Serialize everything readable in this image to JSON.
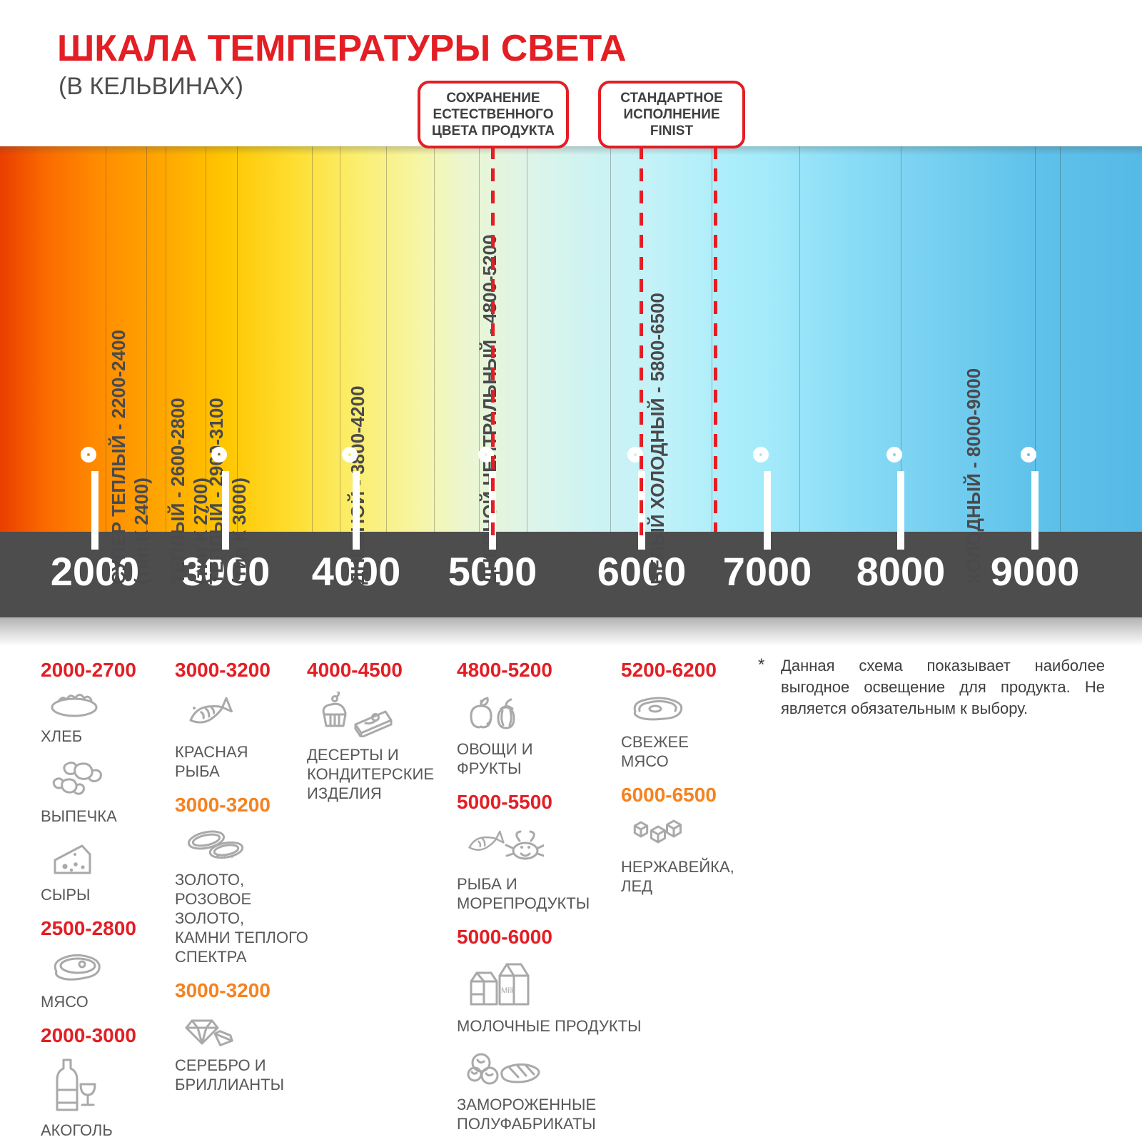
{
  "header": {
    "title": "ШКАЛА ТЕМПЕРАТУРЫ СВЕТА",
    "subtitle": "(В КЕЛЬВИНАХ)"
  },
  "callouts": [
    {
      "name": "preserve-natural-color",
      "lines": [
        "СОХРАНЕНИЕ",
        "ЕСТЕСТВЕННОГО",
        "ЦВЕТА ПРОДУКТА"
      ]
    },
    {
      "name": "standard-finist",
      "lines": [
        "СТАНДАРТНОЕ",
        "ИСПОЛНЕНИЕ",
        "FINIST"
      ]
    }
  ],
  "colors": {
    "red": "#e31e24",
    "orange": "#f58220",
    "bar": "#4d4d4d",
    "label_gray": "#58585a",
    "icon_gray": "#a9a9a9",
    "gradient": "linear-gradient(90deg,#e93e00 0%,#fb6a00 4%,#ff8a00 8.3%,#ffa600 14%,#ffc600 19.7%,#fedd2f 25.5%,#fbee6f 31.2%,#f7f5a3 36.5%,#ecf6cf 40.5%,#e6f5dc 43.1%,#dcf4ea 47%,#cdf3f3 52%,#c6f2f7 56.2%,#aeeefa 63%,#a3eafa 67.4%,#8edff7 73%,#7ed5f2 78.9%,#6ecbee 85%,#5fc2ea 90.6%,#55bae6 100%)"
  },
  "chart_data": {
    "type": "scale",
    "title": "ШКАЛА ТЕМПЕРАТУРЫ СВЕТА (В КЕЛЬВИНАХ)",
    "axis_unit": "K",
    "axis_ticks": [
      "2000",
      "3000",
      "4000",
      "5000",
      "6000",
      "7000",
      "8000",
      "9000"
    ],
    "zones": [
      {
        "name": "СУПЕР ТЕПЛЫЙ",
        "range": "2200-2400",
        "type_label": "(тип К 2400)"
      },
      {
        "name": "ТЕПЛЫЙ",
        "range": "2600-2800",
        "type_label": "(тип К 2700)"
      },
      {
        "name": "ТЕПЛЫЙ",
        "range": "2900-3100",
        "type_label": "(тип К 3000)"
      },
      {
        "name": "ДНЕВНОЙ",
        "range": "3800-4200"
      },
      {
        "name": "ДНЕВНОЙ НЕЙТРАЛЬНЫЙ",
        "range": "4800-5200"
      },
      {
        "name": "БЕЛЫЙ ХОЛОДНЫЙ",
        "range": "5800-6500"
      },
      {
        "name": "ХОЛОДНЫЙ",
        "range": "8000-9000"
      }
    ],
    "annotations": [
      {
        "label": "СОХРАНЕНИЕ ЕСТЕСТВЕННОГО ЦВЕТА ПРОДУКТА",
        "at": 5000
      },
      {
        "label": "СТАНДАРТНОЕ ИСПОЛНЕНИЕ FINIST",
        "from": 6000,
        "to": 6500
      }
    ]
  },
  "icons": {
    "milk_carton_text": "Milk"
  },
  "legend_columns": [
    {
      "groups": [
        {
          "range": "2000-2700",
          "color": "red",
          "items": [
            {
              "icon": "bread-icon",
              "label": "ХЛЕБ"
            },
            {
              "icon": "croissant-icon",
              "label": "ВЫПЕЧКА"
            },
            {
              "icon": "cheese-icon",
              "label": "СЫРЫ"
            }
          ]
        },
        {
          "range": "2500-2800",
          "color": "red",
          "items": [
            {
              "icon": "meat-icon",
              "label": "МЯСО"
            }
          ]
        },
        {
          "range": "2000-3000",
          "color": "red",
          "items": [
            {
              "icon": "alcohol-icon",
              "label": "АКОГОЛЬ"
            }
          ]
        }
      ]
    },
    {
      "groups": [
        {
          "range": "3000-3200",
          "color": "red",
          "items": [
            {
              "icon": "fish-icon",
              "label": "КРАСНАЯ\nРЫБА"
            }
          ]
        },
        {
          "range": "3000-3200",
          "color": "orange",
          "items": [
            {
              "icon": "rings-icon",
              "label": "ЗОЛОТО,\nРОЗОВОЕ ЗОЛОТО,\nКАМНИ ТЕПЛОГО\nСПЕКТРА"
            }
          ]
        },
        {
          "range": "3000-3200",
          "color": "orange",
          "items": [
            {
              "icon": "diamond-icon",
              "label": "СЕРЕБРО И\nБРИЛЛИАНТЫ"
            }
          ]
        }
      ]
    },
    {
      "groups": [
        {
          "range": "4000-4500",
          "color": "red",
          "items": [
            {
              "icon": "dessert-icon",
              "label": "ДЕСЕРТЫ И\nКОНДИТЕРСКИЕ\nИЗДЕЛИЯ"
            }
          ]
        }
      ]
    },
    {
      "groups": [
        {
          "range": "4800-5200",
          "color": "red",
          "items": [
            {
              "icon": "fruits-icon",
              "label": "ОВОЩИ И\nФРУКТЫ"
            }
          ]
        },
        {
          "range": "5000-5500",
          "color": "red",
          "items": [
            {
              "icon": "seafood-icon",
              "label": "РЫБА И\nМОРЕПРОДУКТЫ"
            }
          ]
        },
        {
          "range": "5000-6000",
          "color": "red",
          "items": [
            {
              "icon": "milk-icon",
              "label": "МОЛОЧНЫЕ ПРОДУКТЫ"
            },
            {
              "icon": "frozen-icon",
              "label": "ЗАМОРОЖЕННЫЕ\nПОЛУФАБРИКАТЫ"
            }
          ]
        }
      ]
    },
    {
      "groups": [
        {
          "range": "5200-6200",
          "color": "red",
          "items": [
            {
              "icon": "fresh-meat-icon",
              "label": "СВЕЖЕЕ\nМЯСО"
            }
          ]
        },
        {
          "range": "6000-6500",
          "color": "orange",
          "items": [
            {
              "icon": "ice-icon",
              "label": "НЕРЖАВЕЙКА,\nЛЕД"
            }
          ]
        }
      ]
    }
  ],
  "footnote": {
    "marker": "*",
    "text": "Данная схема показывает наиболее выгодное освещение для продукта. Не является обязательным к выбору."
  }
}
